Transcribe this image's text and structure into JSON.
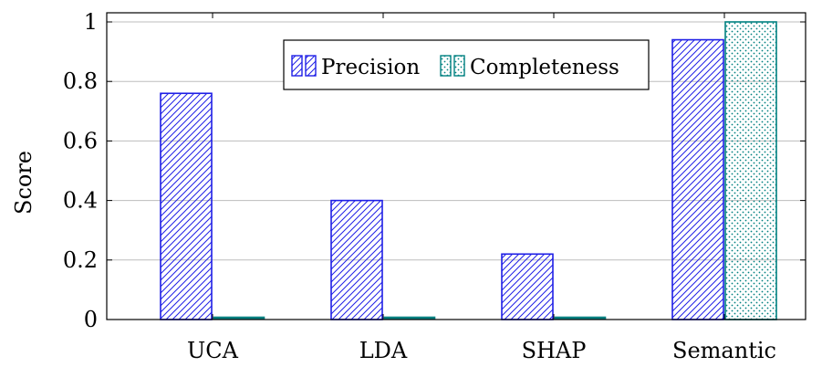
{
  "chart_data": {
    "type": "bar",
    "categories": [
      "UCA",
      "LDA",
      "SHAP",
      "Semantic"
    ],
    "series": [
      {
        "name": "Precision",
        "values": [
          0.76,
          0.4,
          0.22,
          0.94
        ],
        "color": "#1f1fe6",
        "pattern": "north-east-lines"
      },
      {
        "name": "Completeness",
        "values": [
          0.0,
          0.0,
          0.0,
          1.0
        ],
        "color": "#008080",
        "pattern": "dots"
      }
    ],
    "title": "",
    "xlabel": "",
    "ylabel": "Score",
    "ylim": [
      0,
      1.05
    ],
    "yticks": [
      0,
      0.2,
      0.4,
      0.6,
      0.8,
      1
    ],
    "ytick_labels": [
      "0",
      "0.2",
      "0.4",
      "0.6",
      "0.8",
      "1"
    ],
    "grid": "horizontal",
    "legend_position": "top-center"
  }
}
